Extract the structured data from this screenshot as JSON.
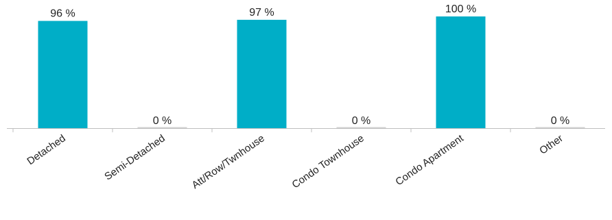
{
  "chart_data": {
    "type": "bar",
    "title": "",
    "xlabel": "",
    "ylabel": "",
    "categories": [
      "Detached",
      "Semi-Detached",
      "Att/Row/Twnhouse",
      "Condo Townhouse",
      "Condo Apartment",
      "Other"
    ],
    "values": [
      96,
      0,
      97,
      0,
      100,
      0
    ],
    "value_labels": [
      "96 %",
      "0 %",
      "97 %",
      "0 %",
      "100 %",
      "0 %"
    ],
    "unit": "%",
    "ylim": [
      0,
      100
    ],
    "grid": false,
    "legend": "none",
    "colors": {
      "bar": "#00AEC7",
      "axis": "#BFBFBF",
      "zero_bar": "#D0D0D0"
    }
  }
}
